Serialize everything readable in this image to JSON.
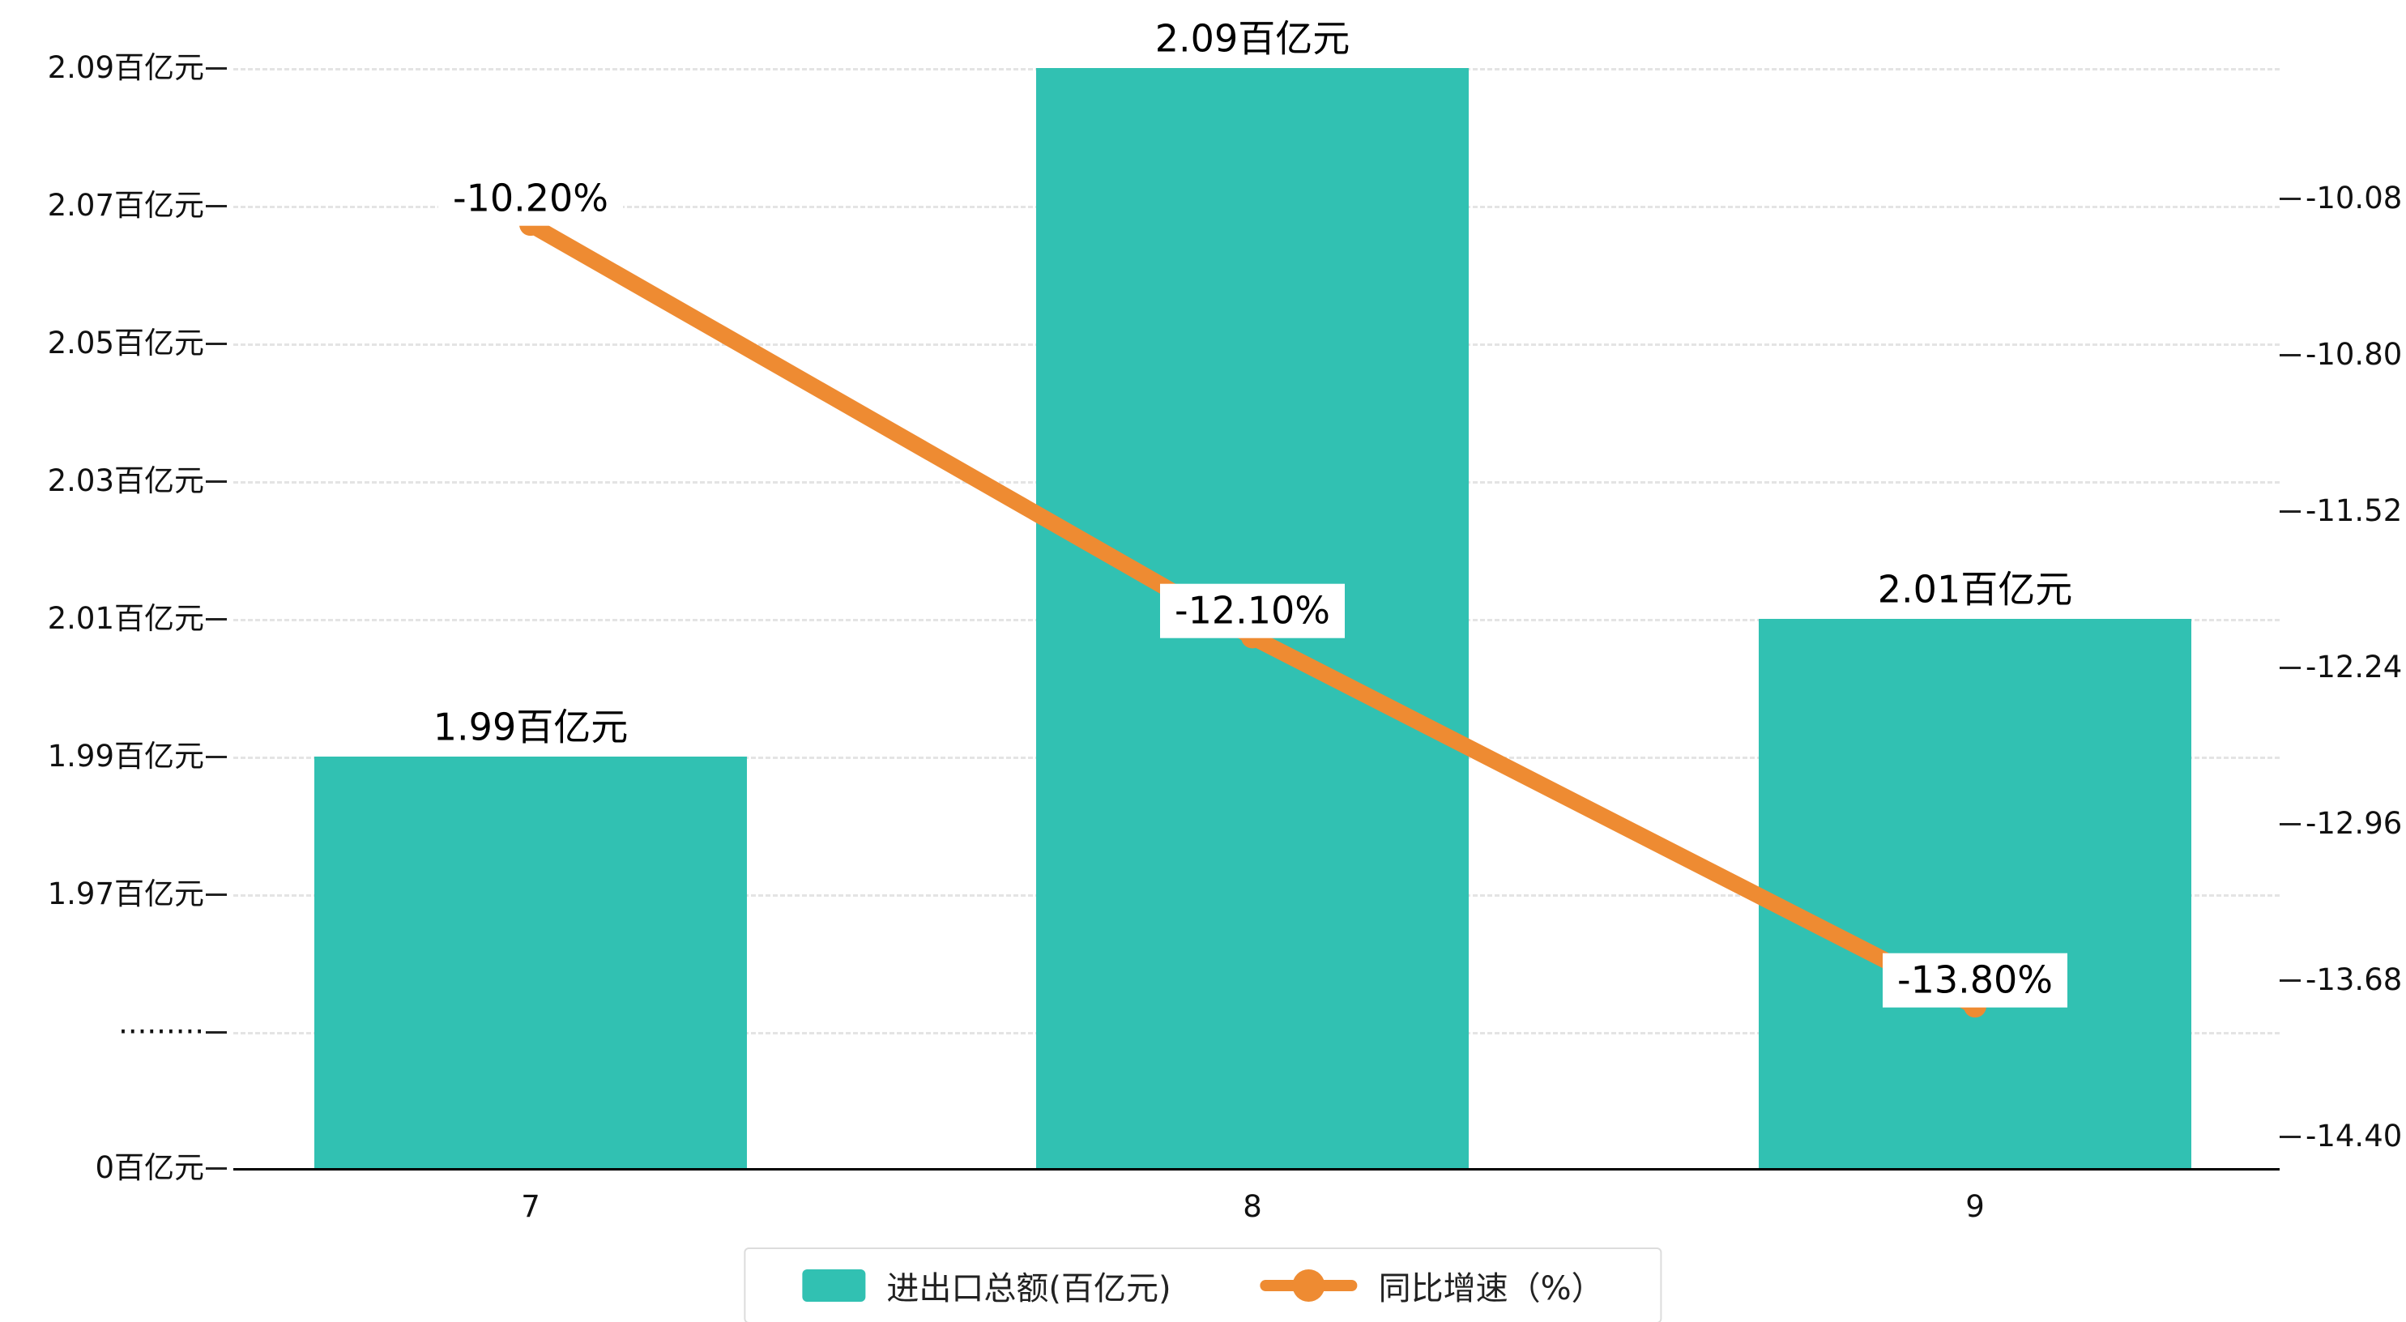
{
  "chart_data": {
    "type": "bar",
    "combo": "bar+line-dual-axis",
    "categories": [
      "7",
      "8",
      "9"
    ],
    "series": [
      {
        "name": "进出口总额(百亿元)",
        "type": "bar",
        "axis": "left",
        "color": "#31c1b2",
        "values": [
          1.99,
          2.09,
          2.01
        ],
        "point_labels": [
          "1.99百亿元",
          "2.09百亿元",
          "2.01百亿元"
        ]
      },
      {
        "name": "同比增速（%）",
        "type": "line",
        "axis": "right",
        "color": "#ee8b32",
        "values": [
          -10.2,
          -12.1,
          -13.8
        ],
        "point_labels": [
          "-10.20%",
          "-12.10%",
          "-13.80%"
        ]
      }
    ],
    "left_axis": {
      "tick_labels": [
        "2.09百亿元",
        "2.07百亿元",
        "2.05百亿元",
        "2.03百亿元",
        "2.01百亿元",
        "1.99百亿元",
        "1.97百亿元",
        "·········",
        "0百亿元"
      ],
      "top_value": 2.09,
      "step_value": 0.02,
      "axis_break": true
    },
    "right_axis": {
      "tick_labels": [
        "-10.08",
        "-10.80",
        "-11.52",
        "-12.24",
        "-12.96",
        "-13.68",
        "-14.40"
      ],
      "top_value": -10.08,
      "step_value": 0.72
    },
    "grid": "dashed-horizontal",
    "legend_position": "bottom-center",
    "background": "#ffffff"
  }
}
